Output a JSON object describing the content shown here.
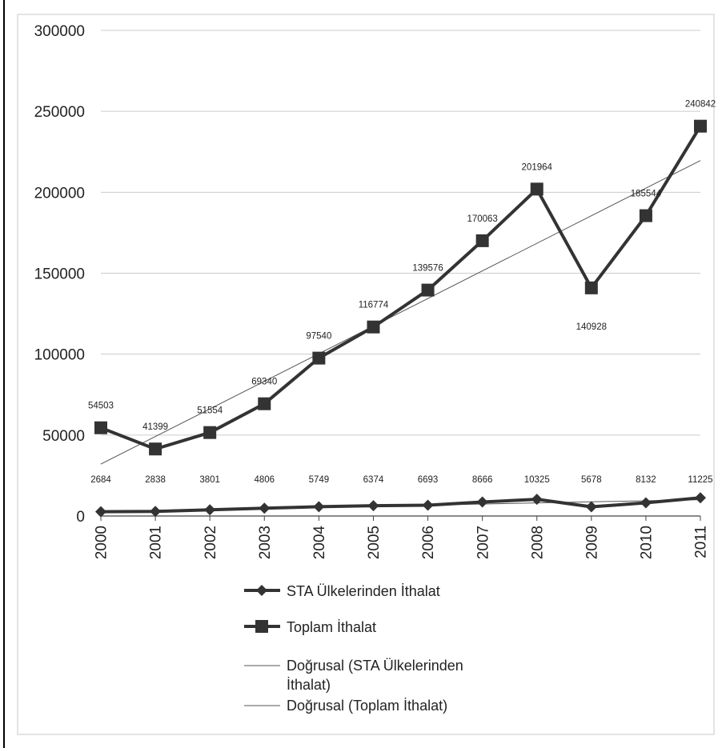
{
  "chart_data": {
    "type": "line",
    "title": "",
    "xlabel": "",
    "ylabel": "",
    "categories": [
      "2000",
      "2001",
      "2002",
      "2003",
      "2004",
      "2005",
      "2006",
      "2007",
      "2008",
      "2009",
      "2010",
      "2011"
    ],
    "ylim": [
      0,
      300000
    ],
    "yticks": [
      "0",
      "50000",
      "100000",
      "150000",
      "200000",
      "250000",
      "300000"
    ],
    "grid": "horizontal",
    "legend_position": "bottom-left",
    "series": [
      {
        "name": "STA Ülkelerinden İthalat",
        "marker": "diamond",
        "values": [
          2684,
          2838,
          3801,
          4806,
          5749,
          6374,
          6693,
          8666,
          10325,
          5678,
          8132,
          11225
        ],
        "labels": [
          "2684",
          "2838",
          "3801",
          "4806",
          "5749",
          "6374",
          "6693",
          "8666",
          "10325",
          "5678",
          "8132",
          "11225"
        ]
      },
      {
        "name": "Toplam İthalat",
        "marker": "square",
        "values": [
          54503,
          41399,
          51554,
          69340,
          97540,
          116774,
          139576,
          170063,
          201964,
          140928,
          185544,
          240842
        ],
        "labels": [
          "54503",
          "41399",
          "51554",
          "69340",
          "97540",
          "116774",
          "139576",
          "170063",
          "201964",
          "140928",
          "185544",
          "240842"
        ]
      }
    ],
    "trendlines": [
      {
        "name": "Doğrusal (STA Ülkelerinden İthalat)",
        "name_line1": "Doğrusal (STA Ülkelerinden",
        "name_line2": "İthalat)",
        "type": "linear",
        "of": "STA Ülkelerinden İthalat"
      },
      {
        "name": "Doğrusal (Toplam İthalat)",
        "type": "linear",
        "of": "Toplam İthalat"
      }
    ],
    "colors": {
      "series": "#333333",
      "trend": "#555555",
      "grid": "#cccccc",
      "frame": "#000000"
    }
  }
}
